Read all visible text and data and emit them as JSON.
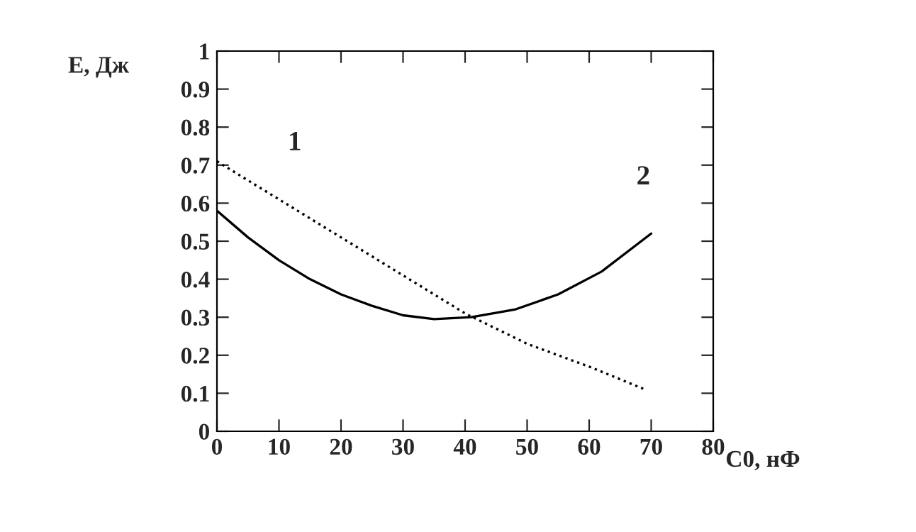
{
  "chart_data": {
    "type": "line",
    "xlabel": "C0, нФ",
    "ylabel": "E, Дж",
    "xlim": [
      0,
      80
    ],
    "ylim": [
      0,
      1
    ],
    "xticks": [
      0,
      10,
      20,
      30,
      40,
      50,
      60,
      70,
      80
    ],
    "yticks": [
      0,
      {
        "value": 0.1,
        "label": "0.1"
      },
      {
        "value": 0.2,
        "label": "0.2"
      },
      {
        "value": 0.3,
        "label": "0.3"
      },
      {
        "value": 0.4,
        "label": "0.4"
      },
      {
        "value": 0.5,
        "label": "0.5"
      },
      {
        "value": 0.6,
        "label": "0.6"
      },
      {
        "value": 0.7,
        "label": "0.7"
      },
      {
        "value": 0.8,
        "label": "0.8"
      },
      {
        "value": 0.9,
        "label": "0.9"
      },
      1
    ],
    "grid": false,
    "legend": false,
    "series": [
      {
        "name": "1",
        "color": "#000000",
        "line_style": "dotted",
        "x": [
          0,
          10,
          20,
          30,
          40,
          50,
          60,
          69
        ],
        "values": [
          0.71,
          0.61,
          0.51,
          0.41,
          0.31,
          0.23,
          0.17,
          0.11
        ]
      },
      {
        "name": "2",
        "color": "#000000",
        "line_style": "solid",
        "x": [
          0,
          5,
          10,
          15,
          20,
          25,
          30,
          35,
          41,
          48,
          55,
          62,
          70
        ],
        "values": [
          0.58,
          0.51,
          0.45,
          0.4,
          0.36,
          0.33,
          0.305,
          0.295,
          0.3,
          0.32,
          0.36,
          0.42,
          0.52
        ]
      }
    ]
  }
}
